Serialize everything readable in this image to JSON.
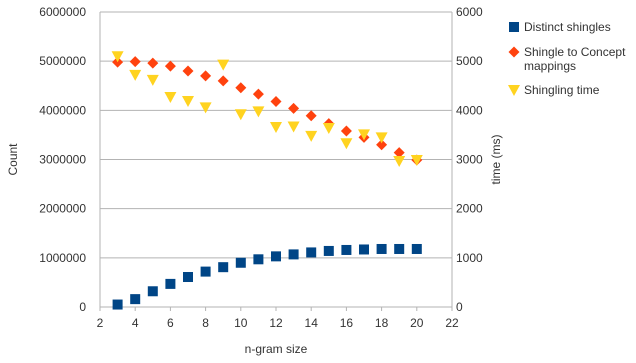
{
  "chart_data": {
    "type": "scatter",
    "title": "",
    "xlabel": "n-gram size",
    "ylabel": "Count",
    "y2label": "time (ms)",
    "xlim": [
      2,
      22
    ],
    "ylim": [
      0,
      6000000
    ],
    "y2lim": [
      0,
      6000
    ],
    "x_ticks": [
      "2",
      "4",
      "6",
      "8",
      "10",
      "12",
      "14",
      "16",
      "18",
      "20",
      "22"
    ],
    "y_ticks": [
      "0",
      "1000000",
      "2000000",
      "3000000",
      "4000000",
      "5000000",
      "6000000"
    ],
    "y2_ticks": [
      "0",
      "1000",
      "2000",
      "3000",
      "4000",
      "5000",
      "6000"
    ],
    "grid": true,
    "legend_position": "right",
    "series": [
      {
        "name": "Distinct shingles",
        "axis": "left",
        "marker": "square",
        "color": "#004586",
        "points": [
          [
            3,
            50000
          ],
          [
            4,
            160000
          ],
          [
            5,
            320000
          ],
          [
            6,
            470000
          ],
          [
            7,
            610000
          ],
          [
            8,
            720000
          ],
          [
            9,
            810000
          ],
          [
            10,
            900000
          ],
          [
            11,
            970000
          ],
          [
            12,
            1030000
          ],
          [
            13,
            1070000
          ],
          [
            14,
            1110000
          ],
          [
            15,
            1140000
          ],
          [
            16,
            1160000
          ],
          [
            17,
            1170000
          ],
          [
            18,
            1180000
          ],
          [
            19,
            1180000
          ],
          [
            20,
            1180000
          ]
        ]
      },
      {
        "name": "Shingle to Concept mappings",
        "axis": "left",
        "marker": "diamond",
        "color": "#ff420e",
        "points": [
          [
            3,
            4980000
          ],
          [
            4,
            4990000
          ],
          [
            5,
            4960000
          ],
          [
            6,
            4900000
          ],
          [
            7,
            4800000
          ],
          [
            8,
            4700000
          ],
          [
            9,
            4600000
          ],
          [
            10,
            4460000
          ],
          [
            11,
            4330000
          ],
          [
            12,
            4180000
          ],
          [
            13,
            4040000
          ],
          [
            14,
            3890000
          ],
          [
            15,
            3730000
          ],
          [
            16,
            3580000
          ],
          [
            17,
            3450000
          ],
          [
            18,
            3300000
          ],
          [
            19,
            3140000
          ],
          [
            20,
            2990000
          ]
        ]
      },
      {
        "name": "Shingling time",
        "axis": "right",
        "marker": "triangle-down",
        "color": "#ffd320",
        "points": [
          [
            3,
            5100
          ],
          [
            4,
            4720
          ],
          [
            5,
            4620
          ],
          [
            6,
            4270
          ],
          [
            7,
            4190
          ],
          [
            8,
            4060
          ],
          [
            9,
            4930
          ],
          [
            10,
            3920
          ],
          [
            11,
            3980
          ],
          [
            12,
            3660
          ],
          [
            13,
            3670
          ],
          [
            14,
            3480
          ],
          [
            15,
            3640
          ],
          [
            16,
            3330
          ],
          [
            17,
            3510
          ],
          [
            18,
            3450
          ],
          [
            19,
            2970
          ],
          [
            20,
            2990
          ]
        ]
      }
    ]
  }
}
